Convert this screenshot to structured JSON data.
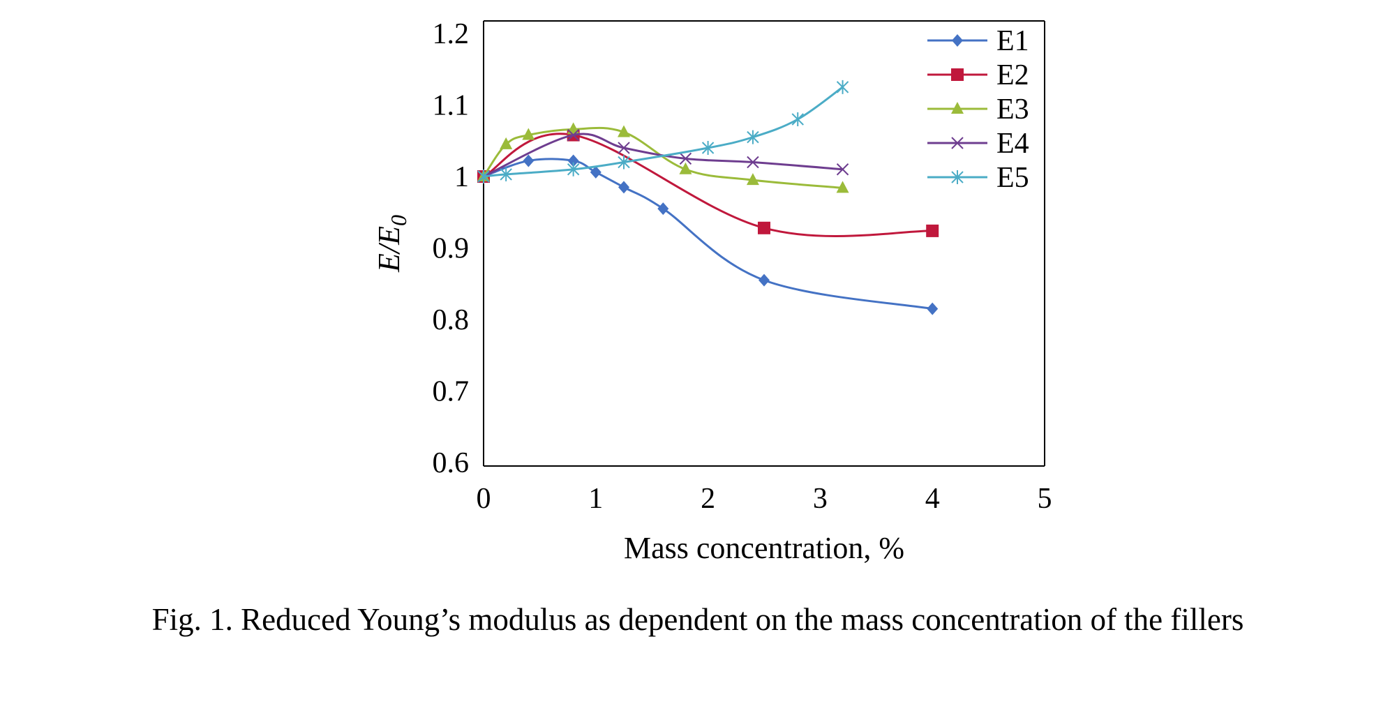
{
  "caption": "Fig. 1. Reduced Young’s modulus as dependent on the mass concentration of the fillers",
  "chart_data": {
    "type": "line",
    "title": "",
    "xlabel": "Mass concentration, %",
    "ylabel": "E/E",
    "ylabel_subscript": "0",
    "xlim": [
      0,
      5
    ],
    "ylim": [
      0.6,
      1.2
    ],
    "x_ticks": [
      "0",
      "1",
      "2",
      "3",
      "4",
      "5"
    ],
    "y_ticks": [
      "0.6",
      "0.7",
      "0.8",
      "0.9",
      "1",
      "1.1",
      "1.2"
    ],
    "grid": false,
    "legend_position": "top-right",
    "series": [
      {
        "name": "E1",
        "color": "#4472C4",
        "marker": "diamond",
        "x": [
          0,
          0.4,
          0.8,
          1.0,
          1.25,
          1.6,
          2.5,
          4.0
        ],
        "y": [
          1.0,
          1.022,
          1.022,
          1.006,
          0.985,
          0.955,
          0.855,
          0.815
        ]
      },
      {
        "name": "E2",
        "color": "#C0183C",
        "marker": "square",
        "x": [
          0,
          0.8,
          2.5,
          4.0
        ],
        "y": [
          1.0,
          1.058,
          0.928,
          0.924
        ]
      },
      {
        "name": "E3",
        "color": "#9BBB3A",
        "marker": "triangle",
        "x": [
          0,
          0.2,
          0.4,
          0.8,
          1.25,
          1.8,
          2.4,
          3.2
        ],
        "y": [
          1.0,
          1.045,
          1.058,
          1.066,
          1.062,
          1.01,
          0.995,
          0.984
        ]
      },
      {
        "name": "E4",
        "color": "#6E3D8F",
        "marker": "x",
        "x": [
          0,
          0.8,
          1.25,
          1.8,
          2.4,
          3.2
        ],
        "y": [
          1.0,
          1.058,
          1.04,
          1.025,
          1.02,
          1.01
        ]
      },
      {
        "name": "E5",
        "color": "#4BACC6",
        "marker": "star",
        "x": [
          0,
          0.2,
          0.8,
          1.25,
          2.0,
          2.4,
          2.8,
          3.2
        ],
        "y": [
          1.0,
          1.003,
          1.01,
          1.02,
          1.04,
          1.055,
          1.08,
          1.125
        ]
      }
    ]
  }
}
